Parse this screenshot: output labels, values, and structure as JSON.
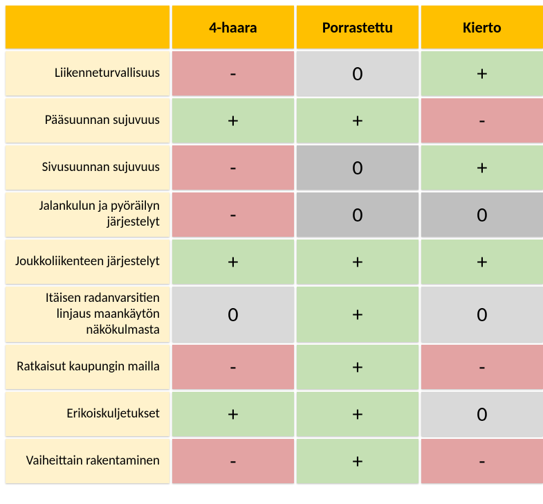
{
  "colors": {
    "header_bg": "#ffc000",
    "rowlabel_bg": "#fff2cc",
    "positive_bg": "#c5e0b4",
    "negative_bg": "#e3a3a3",
    "neutral_light_bg": "#d9d9d9",
    "neutral_dark_bg": "#bfbfbf"
  },
  "columns": [
    {
      "key": "c1",
      "label": "4-haara"
    },
    {
      "key": "c2",
      "label": "Porrastettu"
    },
    {
      "key": "c3",
      "label": "Kierto"
    }
  ],
  "rows": [
    {
      "label": "Liikenneturvallisuus",
      "cells": [
        {
          "value": "-",
          "color": "negative_bg"
        },
        {
          "value": "0",
          "color": "neutral_light_bg"
        },
        {
          "value": "+",
          "color": "positive_bg"
        }
      ]
    },
    {
      "label": "Pääsuunnan sujuvuus",
      "cells": [
        {
          "value": "+",
          "color": "positive_bg"
        },
        {
          "value": "+",
          "color": "positive_bg"
        },
        {
          "value": "-",
          "color": "negative_bg"
        }
      ]
    },
    {
      "label": "Sivusuunnan sujuvuus",
      "cells": [
        {
          "value": "-",
          "color": "negative_bg"
        },
        {
          "value": "0",
          "color": "neutral_dark_bg"
        },
        {
          "value": "+",
          "color": "positive_bg"
        }
      ]
    },
    {
      "label": "Jalankulun ja pyöräilyn järjestelyt",
      "cells": [
        {
          "value": "-",
          "color": "negative_bg"
        },
        {
          "value": "0",
          "color": "neutral_dark_bg"
        },
        {
          "value": "0",
          "color": "neutral_dark_bg"
        }
      ]
    },
    {
      "label": "Joukkoliikenteen järjestelyt",
      "cells": [
        {
          "value": "+",
          "color": "positive_bg"
        },
        {
          "value": "+",
          "color": "positive_bg"
        },
        {
          "value": "+",
          "color": "positive_bg"
        }
      ]
    },
    {
      "label": "Itäisen radanvarsitien linjaus maankäytön näkökulmasta",
      "cells": [
        {
          "value": "0",
          "color": "neutral_light_bg"
        },
        {
          "value": "+",
          "color": "positive_bg"
        },
        {
          "value": "0",
          "color": "neutral_light_bg"
        }
      ]
    },
    {
      "label": "Ratkaisut kaupungin mailla",
      "cells": [
        {
          "value": "-",
          "color": "negative_bg"
        },
        {
          "value": "+",
          "color": "positive_bg"
        },
        {
          "value": "-",
          "color": "negative_bg"
        }
      ]
    },
    {
      "label": "Erikoiskuljetukset",
      "cells": [
        {
          "value": "+",
          "color": "positive_bg"
        },
        {
          "value": "+",
          "color": "positive_bg"
        },
        {
          "value": "0",
          "color": "neutral_light_bg"
        }
      ]
    },
    {
      "label": "Vaiheittain rakentaminen",
      "cells": [
        {
          "value": "-",
          "color": "negative_bg"
        },
        {
          "value": "+",
          "color": "positive_bg"
        },
        {
          "value": "-",
          "color": "negative_bg"
        }
      ]
    }
  ]
}
